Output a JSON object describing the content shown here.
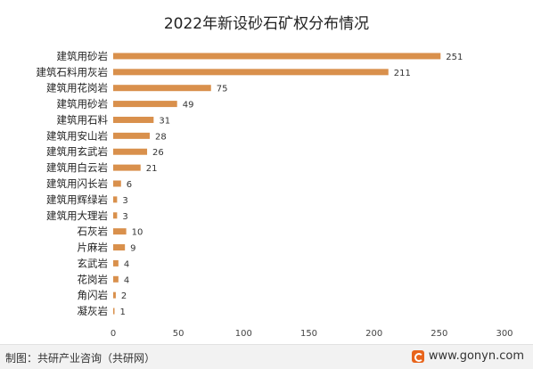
{
  "chart_data": {
    "type": "bar",
    "orientation": "horizontal",
    "title": "2022年新设砂石矿权分布情况",
    "categories": [
      "建筑用砂岩",
      "建筑石料用灰岩",
      "建筑用花岗岩",
      "建筑用砂岩",
      "建筑用石料",
      "建筑用安山岩",
      "建筑用玄武岩",
      "建筑用白云岩",
      "建筑用闪长岩",
      "建筑用辉绿岩",
      "建筑用大理岩",
      "石灰岩",
      "片麻岩",
      "玄武岩",
      "花岗岩",
      "角闪岩",
      "凝灰岩"
    ],
    "values": [
      251,
      211,
      75,
      49,
      31,
      28,
      26,
      21,
      6,
      3,
      3,
      10,
      9,
      4,
      4,
      2,
      1
    ],
    "xlim": [
      0,
      300
    ],
    "xticks": [
      0,
      50,
      100,
      150,
      200,
      250,
      300
    ],
    "bar_color": "#d9904c",
    "grid": false
  },
  "footer": {
    "source": "制图：共研产业咨询（共研网）",
    "website": "www.gonyn.com"
  },
  "colors": {
    "accent": "#d9904c",
    "logo": "#e8641b"
  }
}
